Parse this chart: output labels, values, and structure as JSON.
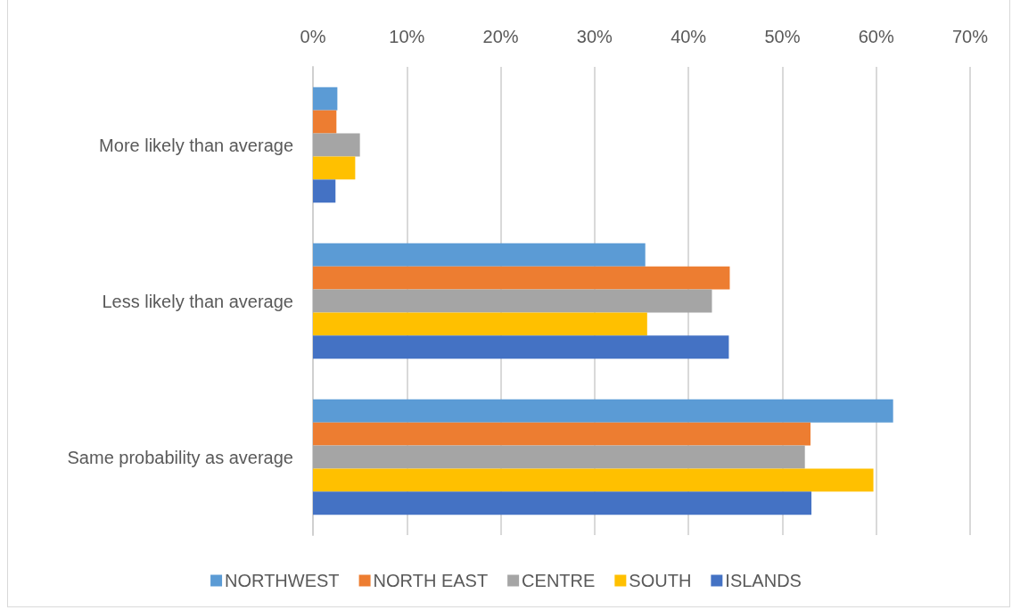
{
  "chart_data": {
    "type": "bar",
    "orientation": "horizontal",
    "categories": [
      "More likely than average",
      "Less likely than average",
      "Same probability as average"
    ],
    "series": [
      {
        "name": "NORTHWEST",
        "color": "#5b9bd5",
        "values": [
          2.6,
          35.4,
          61.8
        ]
      },
      {
        "name": "NORTH EAST",
        "color": "#ed7d31",
        "values": [
          2.5,
          44.4,
          53.0
        ]
      },
      {
        "name": "CENTRE",
        "color": "#a5a5a5",
        "values": [
          5.0,
          42.5,
          52.4
        ]
      },
      {
        "name": "SOUTH",
        "color": "#ffc000",
        "values": [
          4.5,
          35.6,
          59.7
        ]
      },
      {
        "name": "ISLANDS",
        "color": "#4472c4",
        "values": [
          2.4,
          44.3,
          53.1
        ]
      }
    ],
    "xlim": [
      0,
      70
    ],
    "xticks": [
      {
        "value": 0,
        "label": "0%"
      },
      {
        "value": 10,
        "label": "10%"
      },
      {
        "value": 20,
        "label": "20%"
      },
      {
        "value": 30,
        "label": "30%"
      },
      {
        "value": 40,
        "label": "40%"
      },
      {
        "value": 50,
        "label": "50%"
      },
      {
        "value": 60,
        "label": "60%"
      },
      {
        "value": 70,
        "label": "70%"
      }
    ],
    "grid": "x",
    "legend": "bottom"
  }
}
